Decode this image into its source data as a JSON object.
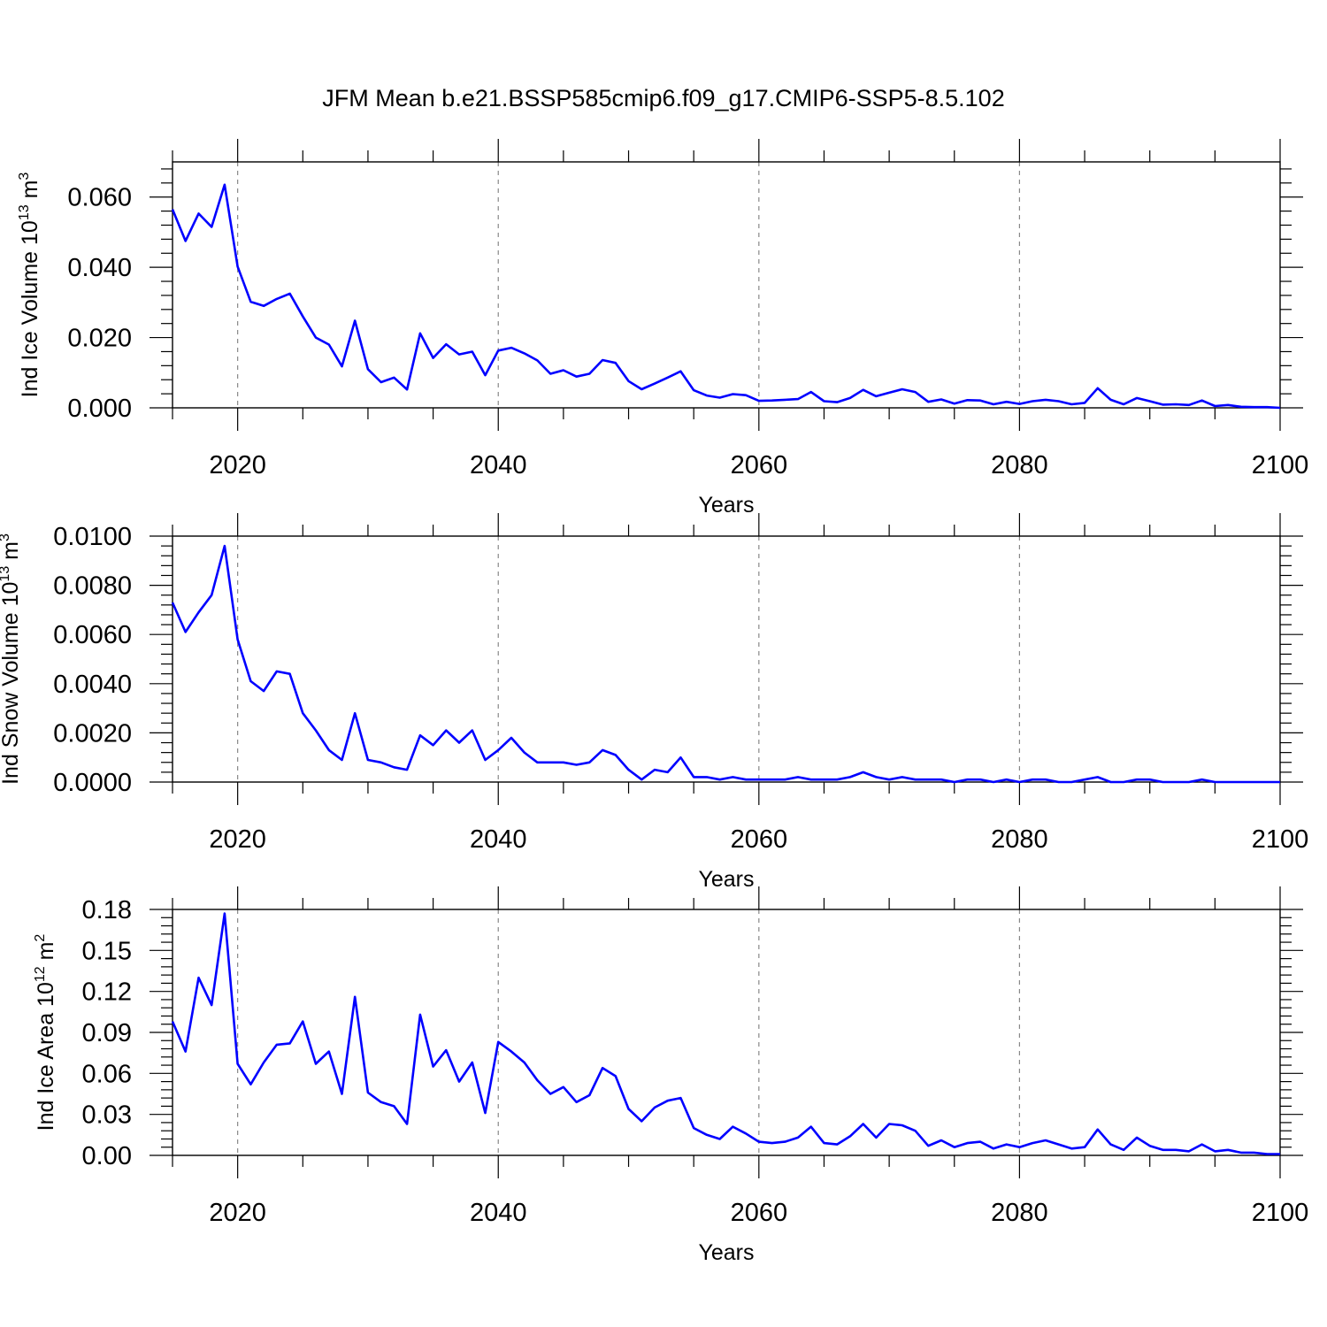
{
  "title": "JFM Mean b.e21.BSSP585cmip6.f09_g17.CMIP6-SSP5-8.5.102",
  "colors": {
    "line": "#0000ff",
    "axes": "#000000",
    "grid": "#888888"
  },
  "chart_data": [
    {
      "type": "line",
      "ylabel": "Ind Ice Volume 10",
      "ylabel_exp": "13",
      "ylabel_unit": " m",
      "ylabel_unit_exp": "3",
      "xlabel": "Years",
      "xlim": [
        2015,
        2100
      ],
      "ylim": [
        0,
        0.07
      ],
      "x_ticks": [
        "2020",
        "2040",
        "2060",
        "2080",
        "2100"
      ],
      "y_ticks": [
        "0.000",
        "0.020",
        "0.040",
        "0.060"
      ],
      "grid": "vertical dashed at major x ticks",
      "series": [
        {
          "x_start": 2015,
          "values": [
            0.0565,
            0.0475,
            0.0553,
            0.0515,
            0.0635,
            0.0402,
            0.0302,
            0.029,
            0.031,
            0.0325,
            0.026,
            0.02,
            0.018,
            0.0118,
            0.0248,
            0.011,
            0.0073,
            0.0086,
            0.0052,
            0.0212,
            0.0142,
            0.0181,
            0.0152,
            0.016,
            0.0093,
            0.0163,
            0.0171,
            0.0155,
            0.0135,
            0.0097,
            0.0107,
            0.0089,
            0.0097,
            0.0136,
            0.0128,
            0.0076,
            0.0053,
            0.0069,
            0.0086,
            0.0104,
            0.005,
            0.0035,
            0.0029,
            0.0039,
            0.0036,
            0.002,
            0.0021,
            0.0023,
            0.0025,
            0.0045,
            0.0019,
            0.0016,
            0.0028,
            0.0051,
            0.0033,
            0.0043,
            0.0053,
            0.0045,
            0.0017,
            0.0024,
            0.0012,
            0.0022,
            0.0021,
            0.001,
            0.0017,
            0.0011,
            0.0019,
            0.0023,
            0.0019,
            0.001,
            0.0014,
            0.0056,
            0.0023,
            0.001,
            0.0028,
            0.0019,
            0.0009,
            0.001,
            0.0008,
            0.0021,
            0.0005,
            0.0008,
            0.0003,
            0.0002,
            0.0002,
            0.0
          ]
        }
      ]
    },
    {
      "type": "line",
      "ylabel": "Ind Snow Volume 10",
      "ylabel_exp": "13",
      "ylabel_unit": " m",
      "ylabel_unit_exp": "3",
      "xlabel": "Years",
      "xlim": [
        2015,
        2100
      ],
      "ylim": [
        0,
        0.01
      ],
      "x_ticks": [
        "2020",
        "2040",
        "2060",
        "2080",
        "2100"
      ],
      "y_ticks": [
        "0.0000",
        "0.0020",
        "0.0040",
        "0.0060",
        "0.0080",
        "0.0100"
      ],
      "grid": "vertical dashed at major x ticks",
      "series": [
        {
          "x_start": 2015,
          "values": [
            0.0073,
            0.0061,
            0.0069,
            0.0076,
            0.0096,
            0.0058,
            0.0041,
            0.0037,
            0.0045,
            0.0044,
            0.0028,
            0.0021,
            0.0013,
            0.0009,
            0.0028,
            0.0009,
            0.0008,
            0.0006,
            0.0005,
            0.0019,
            0.0015,
            0.0021,
            0.0016,
            0.0021,
            0.0009,
            0.0013,
            0.0018,
            0.0012,
            0.0008,
            0.0008,
            0.0008,
            0.0007,
            0.0008,
            0.0013,
            0.0011,
            0.0005,
            0.0001,
            0.0005,
            0.0004,
            0.001,
            0.0002,
            0.0002,
            0.0001,
            0.0002,
            0.0001,
            0.0001,
            0.0001,
            0.0001,
            0.0002,
            0.0001,
            0.0001,
            0.0001,
            0.0002,
            0.0004,
            0.0002,
            0.0001,
            0.0002,
            0.0001,
            0.0001,
            0.0001,
            0.0,
            0.0001,
            0.0001,
            0.0,
            0.0001,
            0.0,
            0.0001,
            0.0001,
            0.0,
            0.0,
            0.0001,
            0.0002,
            0.0,
            0.0,
            0.0001,
            0.0001,
            0.0,
            0.0,
            0.0,
            0.0001,
            0.0,
            0.0,
            0.0,
            0.0,
            0.0,
            0.0
          ]
        }
      ]
    },
    {
      "type": "line",
      "ylabel": "Ind Ice Area 10",
      "ylabel_exp": "12",
      "ylabel_unit": " m",
      "ylabel_unit_exp": "2",
      "xlabel": "Years",
      "xlim": [
        2015,
        2100
      ],
      "ylim": [
        0,
        0.18
      ],
      "x_ticks": [
        "2020",
        "2040",
        "2060",
        "2080",
        "2100"
      ],
      "y_ticks": [
        "0.00",
        "0.03",
        "0.06",
        "0.09",
        "0.12",
        "0.15",
        "0.18"
      ],
      "grid": "vertical dashed at major x ticks",
      "series": [
        {
          "x_start": 2015,
          "values": [
            0.098,
            0.076,
            0.13,
            0.11,
            0.177,
            0.067,
            0.052,
            0.068,
            0.081,
            0.082,
            0.098,
            0.067,
            0.076,
            0.045,
            0.116,
            0.046,
            0.039,
            0.036,
            0.023,
            0.103,
            0.065,
            0.077,
            0.054,
            0.068,
            0.031,
            0.083,
            0.076,
            0.068,
            0.055,
            0.045,
            0.05,
            0.039,
            0.044,
            0.064,
            0.058,
            0.034,
            0.025,
            0.035,
            0.04,
            0.042,
            0.02,
            0.015,
            0.012,
            0.021,
            0.016,
            0.01,
            0.009,
            0.01,
            0.013,
            0.021,
            0.009,
            0.008,
            0.014,
            0.023,
            0.013,
            0.023,
            0.022,
            0.018,
            0.007,
            0.011,
            0.006,
            0.009,
            0.01,
            0.005,
            0.008,
            0.006,
            0.009,
            0.011,
            0.008,
            0.005,
            0.006,
            0.019,
            0.008,
            0.004,
            0.013,
            0.007,
            0.004,
            0.004,
            0.003,
            0.008,
            0.003,
            0.004,
            0.002,
            0.002,
            0.001,
            0.001
          ]
        }
      ]
    }
  ]
}
